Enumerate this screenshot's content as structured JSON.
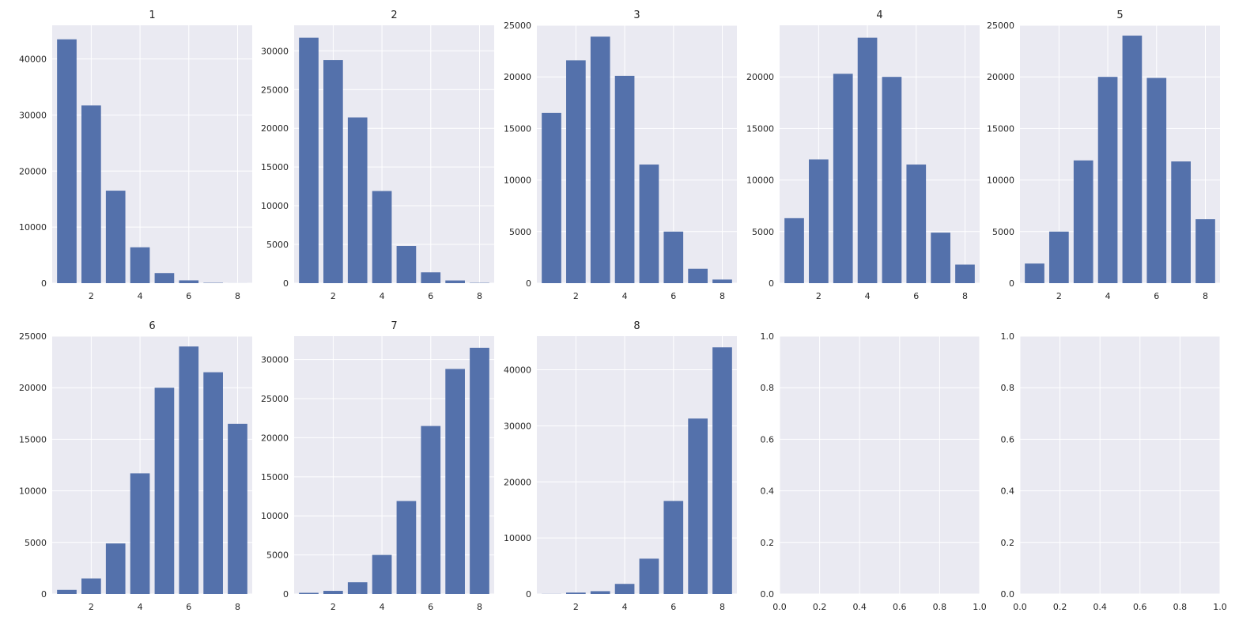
{
  "figure": {
    "rows": 2,
    "cols": 5
  },
  "colors": {
    "bar": "#5471ab",
    "axes_bg": "#eaeaf2",
    "grid": "#ffffff",
    "text": "#262626"
  },
  "chart_data": [
    {
      "type": "bar",
      "title": "1",
      "x": [
        1,
        2,
        3,
        4,
        5,
        6,
        7,
        8
      ],
      "values": [
        43500,
        31700,
        16500,
        6400,
        1800,
        500,
        60,
        5
      ],
      "xlim": [
        0.4,
        8.6
      ],
      "ylim": [
        0,
        46000
      ],
      "xticks": [
        2,
        4,
        6,
        8
      ],
      "xtick_labels": [
        "2",
        "4",
        "6",
        "8"
      ],
      "yticks": [
        0,
        10000,
        20000,
        30000,
        40000
      ],
      "ytick_labels": [
        "0",
        "10000",
        "20000",
        "30000",
        "40000"
      ],
      "grid": true
    },
    {
      "type": "bar",
      "title": "2",
      "x": [
        1,
        2,
        3,
        4,
        5,
        6,
        7,
        8
      ],
      "values": [
        31700,
        28800,
        21400,
        11900,
        4800,
        1400,
        350,
        40
      ],
      "xlim": [
        0.4,
        8.6
      ],
      "ylim": [
        0,
        33300
      ],
      "xticks": [
        2,
        4,
        6,
        8
      ],
      "xtick_labels": [
        "2",
        "4",
        "6",
        "8"
      ],
      "yticks": [
        0,
        5000,
        10000,
        15000,
        20000,
        25000,
        30000
      ],
      "ytick_labels": [
        "0",
        "5000",
        "10000",
        "15000",
        "20000",
        "25000",
        "30000"
      ],
      "grid": true
    },
    {
      "type": "bar",
      "title": "3",
      "x": [
        1,
        2,
        3,
        4,
        5,
        6,
        7,
        8
      ],
      "values": [
        16500,
        21600,
        23900,
        20100,
        11500,
        5000,
        1400,
        350
      ],
      "xlim": [
        0.4,
        8.6
      ],
      "ylim": [
        0,
        25000
      ],
      "xticks": [
        2,
        4,
        6,
        8
      ],
      "xtick_labels": [
        "2",
        "4",
        "6",
        "8"
      ],
      "yticks": [
        0,
        5000,
        10000,
        15000,
        20000,
        25000
      ],
      "ytick_labels": [
        "0",
        "5000",
        "10000",
        "15000",
        "20000",
        "25000"
      ],
      "grid": true
    },
    {
      "type": "bar",
      "title": "4",
      "x": [
        1,
        2,
        3,
        4,
        5,
        6,
        7,
        8
      ],
      "values": [
        6300,
        12000,
        20300,
        23800,
        20000,
        11500,
        4900,
        1800
      ],
      "xlim": [
        0.4,
        8.6
      ],
      "ylim": [
        0,
        25000
      ],
      "xticks": [
        2,
        4,
        6,
        8
      ],
      "xtick_labels": [
        "2",
        "4",
        "6",
        "8"
      ],
      "yticks": [
        0,
        5000,
        10000,
        15000,
        20000
      ],
      "ytick_labels": [
        "0",
        "5000",
        "10000",
        "15000",
        "20000"
      ],
      "grid": true
    },
    {
      "type": "bar",
      "title": "5",
      "x": [
        1,
        2,
        3,
        4,
        5,
        6,
        7,
        8
      ],
      "values": [
        1900,
        5000,
        11900,
        20000,
        24000,
        19900,
        11800,
        6200
      ],
      "xlim": [
        0.4,
        8.6
      ],
      "ylim": [
        0,
        25000
      ],
      "xticks": [
        2,
        4,
        6,
        8
      ],
      "xtick_labels": [
        "2",
        "4",
        "6",
        "8"
      ],
      "yticks": [
        0,
        5000,
        10000,
        15000,
        20000,
        25000
      ],
      "ytick_labels": [
        "0",
        "5000",
        "10000",
        "15000",
        "20000",
        "25000"
      ],
      "grid": true
    },
    {
      "type": "bar",
      "title": "6",
      "x": [
        1,
        2,
        3,
        4,
        5,
        6,
        7,
        8
      ],
      "values": [
        400,
        1500,
        4900,
        11700,
        20000,
        24000,
        21500,
        16500
      ],
      "xlim": [
        0.4,
        8.6
      ],
      "ylim": [
        0,
        25000
      ],
      "xticks": [
        2,
        4,
        6,
        8
      ],
      "xtick_labels": [
        "2",
        "4",
        "6",
        "8"
      ],
      "yticks": [
        0,
        5000,
        10000,
        15000,
        20000,
        25000
      ],
      "ytick_labels": [
        "0",
        "5000",
        "10000",
        "15000",
        "20000",
        "25000"
      ],
      "grid": true
    },
    {
      "type": "bar",
      "title": "7",
      "x": [
        1,
        2,
        3,
        4,
        5,
        6,
        7,
        8
      ],
      "values": [
        150,
        400,
        1500,
        5000,
        11900,
        21500,
        28800,
        31500
      ],
      "xlim": [
        0.4,
        8.6
      ],
      "ylim": [
        0,
        33000
      ],
      "xticks": [
        2,
        4,
        6,
        8
      ],
      "xtick_labels": [
        "2",
        "4",
        "6",
        "8"
      ],
      "yticks": [
        0,
        5000,
        10000,
        15000,
        20000,
        25000,
        30000
      ],
      "ytick_labels": [
        "0",
        "5000",
        "10000",
        "15000",
        "20000",
        "25000",
        "30000"
      ],
      "grid": true
    },
    {
      "type": "bar",
      "title": "8",
      "x": [
        1,
        2,
        3,
        4,
        5,
        6,
        7,
        8
      ],
      "values": [
        20,
        250,
        500,
        1800,
        6300,
        16600,
        31300,
        44000
      ],
      "xlim": [
        0.4,
        8.6
      ],
      "ylim": [
        0,
        46000
      ],
      "xticks": [
        2,
        4,
        6,
        8
      ],
      "xtick_labels": [
        "2",
        "4",
        "6",
        "8"
      ],
      "yticks": [
        0,
        10000,
        20000,
        30000,
        40000
      ],
      "ytick_labels": [
        "0",
        "10000",
        "20000",
        "30000",
        "40000"
      ],
      "grid": true
    },
    {
      "type": "bar",
      "title": "",
      "x": [],
      "values": [],
      "xlim": [
        0,
        1
      ],
      "ylim": [
        0,
        1
      ],
      "xticks": [
        0,
        0.2,
        0.4,
        0.6,
        0.8,
        1.0
      ],
      "xtick_labels": [
        "0.0",
        "0.2",
        "0.4",
        "0.6",
        "0.8",
        "1.0"
      ],
      "yticks": [
        0,
        0.2,
        0.4,
        0.6,
        0.8,
        1.0
      ],
      "ytick_labels": [
        "0.0",
        "0.2",
        "0.4",
        "0.6",
        "0.8",
        "1.0"
      ],
      "grid": true
    },
    {
      "type": "bar",
      "title": "",
      "x": [],
      "values": [],
      "xlim": [
        0,
        1
      ],
      "ylim": [
        0,
        1
      ],
      "xticks": [
        0,
        0.2,
        0.4,
        0.6,
        0.8,
        1.0
      ],
      "xtick_labels": [
        "0.0",
        "0.2",
        "0.4",
        "0.6",
        "0.8",
        "1.0"
      ],
      "yticks": [
        0,
        0.2,
        0.4,
        0.6,
        0.8,
        1.0
      ],
      "ytick_labels": [
        "0.0",
        "0.2",
        "0.4",
        "0.6",
        "0.8",
        "1.0"
      ],
      "grid": true
    }
  ]
}
